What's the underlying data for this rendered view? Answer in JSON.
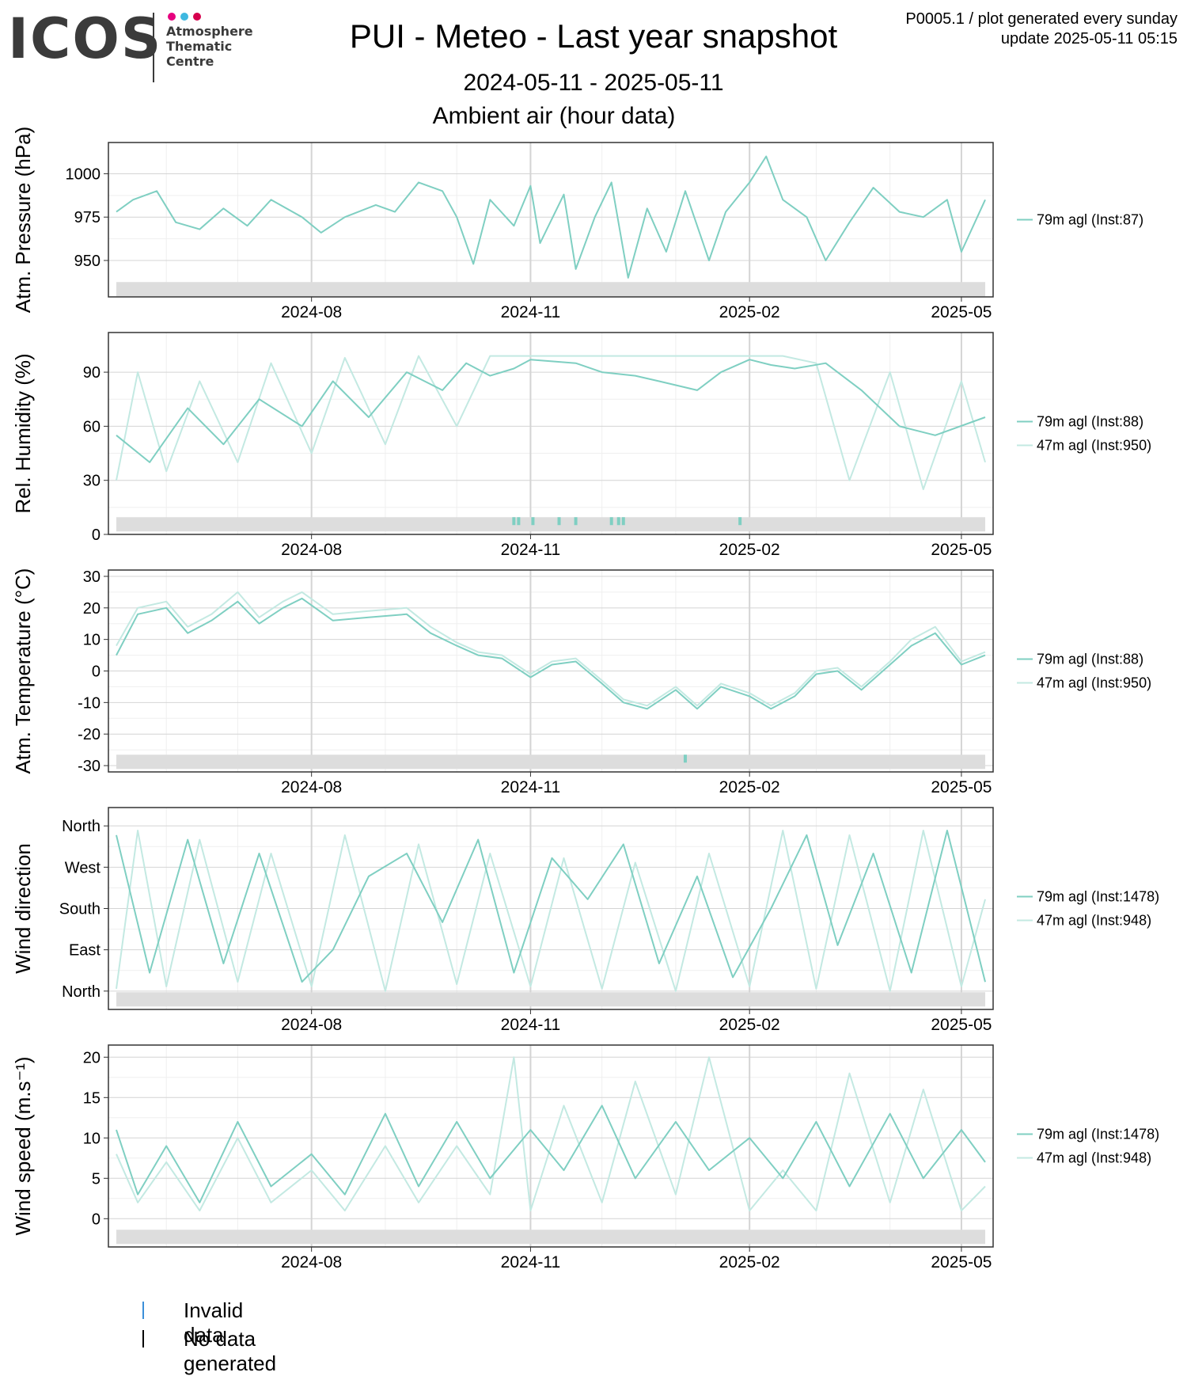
{
  "header": {
    "logo_text": "ICOS",
    "logo_sub": [
      "Atmosphere",
      "Thematic",
      "Centre"
    ],
    "logo_dot_colors": [
      "#e6007e",
      "#3eb8e0",
      "#d6004d"
    ],
    "title": "PUI - Meteo - Last year snapshot",
    "date_range": "2024-05-11 - 2025-05-11",
    "subtitle": "Ambient air (hour data)",
    "plot_id": "P0005.1 / plot generated every sunday",
    "update": "update  2025-05-11 05:15"
  },
  "colors": {
    "series_79m": "#7fcfc2",
    "series_47m": "#c3e9e2",
    "series_single": "#7fcfc2",
    "invalid": "#3b8fd9",
    "no_data": "#000000",
    "flag_bar": "#dddddd",
    "flag_mark": "#7fcfc2",
    "grid_major": "#d4d4d4",
    "grid_minor": "#efefef",
    "frame": "#333333"
  },
  "footer_legend": [
    {
      "label": "Invalid data",
      "color": "#3b8fd9"
    },
    {
      "label": "No data generated",
      "color": "#000000"
    }
  ],
  "chart_data": [
    {
      "type": "line",
      "ylabel": "Atm. Pressure (hPa)",
      "x_range": [
        "2024-05-11",
        "2025-05-11"
      ],
      "x_ticks": [
        "2024-08",
        "2024-11",
        "2025-02",
        "2025-05"
      ],
      "ylim": [
        929,
        1018
      ],
      "y_ticks": [
        950,
        975,
        1000
      ],
      "grid": true,
      "legend_position": "right",
      "series": [
        {
          "name": "79m agl (Inst:87)",
          "color_key": "series_single",
          "x": [
            "2024-05-11",
            "2024-05-18",
            "2024-05-28",
            "2024-06-05",
            "2024-06-15",
            "2024-06-25",
            "2024-07-05",
            "2024-07-15",
            "2024-07-28",
            "2024-08-05",
            "2024-08-15",
            "2024-08-28",
            "2024-09-05",
            "2024-09-15",
            "2024-09-25",
            "2024-10-01",
            "2024-10-08",
            "2024-10-15",
            "2024-10-25",
            "2024-11-01",
            "2024-11-05",
            "2024-11-15",
            "2024-11-20",
            "2024-11-28",
            "2024-12-05",
            "2024-12-12",
            "2024-12-20",
            "2024-12-28",
            "2025-01-05",
            "2025-01-15",
            "2025-01-22",
            "2025-02-01",
            "2025-02-08",
            "2025-02-15",
            "2025-02-25",
            "2025-03-05",
            "2025-03-15",
            "2025-03-25",
            "2025-04-05",
            "2025-04-15",
            "2025-04-25",
            "2025-05-01",
            "2025-05-11"
          ],
          "y": [
            978,
            985,
            990,
            972,
            968,
            980,
            970,
            985,
            975,
            966,
            975,
            982,
            978,
            995,
            990,
            975,
            948,
            985,
            970,
            993,
            960,
            988,
            945,
            975,
            995,
            940,
            980,
            955,
            990,
            950,
            978,
            995,
            1010,
            985,
            975,
            950,
            972,
            992,
            978,
            975,
            985,
            955,
            985
          ]
        }
      ],
      "flags": []
    },
    {
      "type": "line",
      "ylabel": "Rel. Humidity (%)",
      "x_range": [
        "2024-05-11",
        "2025-05-11"
      ],
      "x_ticks": [
        "2024-08",
        "2024-11",
        "2025-02",
        "2025-05"
      ],
      "ylim": [
        0,
        112
      ],
      "y_ticks": [
        0,
        30,
        60,
        90
      ],
      "grid": true,
      "legend_position": "right",
      "series": [
        {
          "name": "79m agl (Inst:88)",
          "color_key": "series_79m",
          "x": [
            "2024-05-11",
            "2024-05-25",
            "2024-06-10",
            "2024-06-25",
            "2024-07-10",
            "2024-07-28",
            "2024-08-10",
            "2024-08-25",
            "2024-09-10",
            "2024-09-25",
            "2024-10-05",
            "2024-10-15",
            "2024-10-25",
            "2024-11-01",
            "2024-11-10",
            "2024-11-20",
            "2024-12-01",
            "2024-12-15",
            "2024-12-25",
            "2025-01-10",
            "2025-01-20",
            "2025-02-01",
            "2025-02-10",
            "2025-02-20",
            "2025-03-05",
            "2025-03-20",
            "2025-04-05",
            "2025-04-20",
            "2025-05-11"
          ],
          "y": [
            55,
            40,
            70,
            50,
            75,
            60,
            85,
            65,
            90,
            80,
            95,
            88,
            92,
            97,
            96,
            95,
            90,
            88,
            85,
            80,
            90,
            97,
            94,
            92,
            95,
            80,
            60,
            55,
            65
          ]
        },
        {
          "name": "47m agl (Inst:950)",
          "color_key": "series_47m",
          "x": [
            "2024-05-11",
            "2024-05-20",
            "2024-06-01",
            "2024-06-15",
            "2024-07-01",
            "2024-07-15",
            "2024-08-01",
            "2024-08-15",
            "2024-09-01",
            "2024-09-15",
            "2024-10-01",
            "2024-10-15",
            "2024-11-01",
            "2024-11-15",
            "2024-12-01",
            "2024-12-15",
            "2025-01-01",
            "2025-01-15",
            "2025-02-01",
            "2025-02-15",
            "2025-03-01",
            "2025-03-15",
            "2025-04-01",
            "2025-04-15",
            "2025-05-01",
            "2025-05-11"
          ],
          "y": [
            30,
            90,
            35,
            85,
            40,
            95,
            45,
            98,
            50,
            99,
            60,
            99,
            99,
            99,
            99,
            99,
            99,
            99,
            99,
            99,
            95,
            30,
            90,
            25,
            85,
            40
          ]
        }
      ],
      "flags": [
        {
          "x": "2024-10-25",
          "kind": "invalid"
        },
        {
          "x": "2024-10-27",
          "kind": "invalid"
        },
        {
          "x": "2024-11-02",
          "kind": "invalid"
        },
        {
          "x": "2024-11-13",
          "kind": "invalid"
        },
        {
          "x": "2024-11-20",
          "kind": "invalid"
        },
        {
          "x": "2024-12-05",
          "kind": "invalid"
        },
        {
          "x": "2024-12-08",
          "kind": "invalid"
        },
        {
          "x": "2024-12-10",
          "kind": "invalid"
        },
        {
          "x": "2025-01-28",
          "kind": "invalid"
        }
      ]
    },
    {
      "type": "line",
      "ylabel": "Atm. Temperature (°C)",
      "x_range": [
        "2024-05-11",
        "2025-05-11"
      ],
      "x_ticks": [
        "2024-08",
        "2024-11",
        "2025-02",
        "2025-05"
      ],
      "ylim": [
        -32,
        32
      ],
      "y_ticks": [
        -30,
        -20,
        -10,
        0,
        10,
        20,
        30
      ],
      "grid": true,
      "legend_position": "right",
      "series": [
        {
          "name": "79m agl (Inst:88)",
          "color_key": "series_79m",
          "x": [
            "2024-05-11",
            "2024-05-20",
            "2024-06-01",
            "2024-06-10",
            "2024-06-20",
            "2024-07-01",
            "2024-07-10",
            "2024-07-20",
            "2024-07-28",
            "2024-08-10",
            "2024-08-25",
            "2024-09-10",
            "2024-09-20",
            "2024-10-01",
            "2024-10-10",
            "2024-10-20",
            "2024-11-01",
            "2024-11-10",
            "2024-11-20",
            "2024-12-01",
            "2024-12-10",
            "2024-12-20",
            "2025-01-01",
            "2025-01-10",
            "2025-01-20",
            "2025-02-01",
            "2025-02-10",
            "2025-02-20",
            "2025-03-01",
            "2025-03-10",
            "2025-03-20",
            "2025-04-01",
            "2025-04-10",
            "2025-04-20",
            "2025-05-01",
            "2025-05-11"
          ],
          "y": [
            5,
            18,
            20,
            12,
            16,
            22,
            15,
            20,
            23,
            16,
            17,
            18,
            12,
            8,
            5,
            4,
            -2,
            2,
            3,
            -4,
            -10,
            -12,
            -6,
            -12,
            -5,
            -8,
            -12,
            -8,
            -1,
            0,
            -6,
            2,
            8,
            12,
            2,
            5
          ]
        },
        {
          "name": "47m agl (Inst:950)",
          "color_key": "series_47m",
          "x": [
            "2024-05-11",
            "2024-05-20",
            "2024-06-01",
            "2024-06-10",
            "2024-06-20",
            "2024-07-01",
            "2024-07-10",
            "2024-07-20",
            "2024-07-28",
            "2024-08-10",
            "2024-08-25",
            "2024-09-10",
            "2024-09-20",
            "2024-10-01",
            "2024-10-10",
            "2024-10-20",
            "2024-11-01",
            "2024-11-10",
            "2024-11-20",
            "2024-12-01",
            "2024-12-10",
            "2024-12-20",
            "2025-01-01",
            "2025-01-10",
            "2025-01-20",
            "2025-02-01",
            "2025-02-10",
            "2025-02-20",
            "2025-03-01",
            "2025-03-10",
            "2025-03-20",
            "2025-04-01",
            "2025-04-10",
            "2025-04-20",
            "2025-05-01",
            "2025-05-11"
          ],
          "y": [
            8,
            20,
            22,
            14,
            18,
            25,
            17,
            22,
            25,
            18,
            19,
            20,
            14,
            9,
            6,
            5,
            -1,
            3,
            4,
            -3,
            -9,
            -11,
            -5,
            -11,
            -4,
            -7,
            -11,
            -7,
            0,
            1,
            -5,
            3,
            10,
            14,
            3,
            6
          ]
        }
      ],
      "flags": [
        {
          "x": "2025-01-05",
          "kind": "invalid"
        }
      ]
    },
    {
      "type": "line",
      "ylabel": "Wind direction",
      "x_range": [
        "2024-05-11",
        "2025-05-11"
      ],
      "x_ticks": [
        "2024-08",
        "2024-11",
        "2025-02",
        "2025-05"
      ],
      "ylim": [
        -40,
        400
      ],
      "y_ticks": [
        0,
        90,
        180,
        270,
        360
      ],
      "y_tick_labels": [
        "North",
        "East",
        "South",
        "West",
        "North"
      ],
      "grid": true,
      "legend_position": "right",
      "series": [
        {
          "name": "79m agl (Inst:1478)",
          "color_key": "series_79m",
          "x": [
            "2024-05-11",
            "2024-05-25",
            "2024-06-10",
            "2024-06-25",
            "2024-07-10",
            "2024-07-28",
            "2024-08-10",
            "2024-08-25",
            "2024-09-10",
            "2024-09-25",
            "2024-10-10",
            "2024-10-25",
            "2024-11-10",
            "2024-11-25",
            "2024-12-10",
            "2024-12-25",
            "2025-01-10",
            "2025-01-25",
            "2025-02-10",
            "2025-02-25",
            "2025-03-10",
            "2025-03-25",
            "2025-04-10",
            "2025-04-25",
            "2025-05-11"
          ],
          "y": [
            340,
            40,
            330,
            60,
            300,
            20,
            90,
            250,
            300,
            150,
            330,
            40,
            290,
            200,
            320,
            60,
            250,
            30,
            180,
            340,
            100,
            300,
            40,
            350,
            20
          ]
        },
        {
          "name": "47m agl (Inst:948)",
          "color_key": "series_47m",
          "x": [
            "2024-05-11",
            "2024-05-20",
            "2024-06-01",
            "2024-06-15",
            "2024-07-01",
            "2024-07-15",
            "2024-08-01",
            "2024-08-15",
            "2024-09-01",
            "2024-09-15",
            "2024-10-01",
            "2024-10-15",
            "2024-11-01",
            "2024-11-15",
            "2024-12-01",
            "2024-12-15",
            "2025-01-01",
            "2025-01-15",
            "2025-02-01",
            "2025-02-15",
            "2025-03-01",
            "2025-03-15",
            "2025-04-01",
            "2025-04-15",
            "2025-05-01",
            "2025-05-11"
          ],
          "y": [
            5,
            350,
            10,
            330,
            20,
            300,
            10,
            340,
            0,
            320,
            15,
            300,
            10,
            290,
            5,
            280,
            0,
            300,
            10,
            350,
            5,
            340,
            0,
            350,
            10,
            200
          ]
        }
      ],
      "flags": []
    },
    {
      "type": "line",
      "ylabel": "Wind speed (m.s⁻¹)",
      "x_range": [
        "2024-05-11",
        "2025-05-11"
      ],
      "x_ticks": [
        "2024-08",
        "2024-11",
        "2025-02",
        "2025-05"
      ],
      "ylim": [
        -3.5,
        21.5
      ],
      "y_ticks": [
        0,
        5,
        10,
        15,
        20
      ],
      "grid": true,
      "legend_position": "right",
      "series": [
        {
          "name": "79m agl (Inst:1478)",
          "color_key": "series_79m",
          "x": [
            "2024-05-11",
            "2024-05-20",
            "2024-06-01",
            "2024-06-15",
            "2024-07-01",
            "2024-07-15",
            "2024-08-01",
            "2024-08-15",
            "2024-09-01",
            "2024-09-15",
            "2024-10-01",
            "2024-10-15",
            "2024-11-01",
            "2024-11-15",
            "2024-12-01",
            "2024-12-15",
            "2025-01-01",
            "2025-01-15",
            "2025-02-01",
            "2025-02-15",
            "2025-03-01",
            "2025-03-15",
            "2025-04-01",
            "2025-04-15",
            "2025-05-01",
            "2025-05-11"
          ],
          "y": [
            11,
            3,
            9,
            2,
            12,
            4,
            8,
            3,
            13,
            4,
            12,
            5,
            11,
            6,
            14,
            5,
            12,
            6,
            10,
            5,
            12,
            4,
            13,
            5,
            11,
            7
          ]
        },
        {
          "name": "47m agl (Inst:948)",
          "color_key": "series_47m",
          "x": [
            "2024-05-11",
            "2024-05-20",
            "2024-06-01",
            "2024-06-15",
            "2024-07-01",
            "2024-07-15",
            "2024-08-01",
            "2024-08-15",
            "2024-09-01",
            "2024-09-15",
            "2024-10-01",
            "2024-10-15",
            "2024-10-25",
            "2024-11-01",
            "2024-11-15",
            "2024-12-01",
            "2024-12-15",
            "2025-01-01",
            "2025-01-15",
            "2025-02-01",
            "2025-02-15",
            "2025-03-01",
            "2025-03-15",
            "2025-04-01",
            "2025-04-15",
            "2025-05-01",
            "2025-05-11"
          ],
          "y": [
            8,
            2,
            7,
            1,
            10,
            2,
            6,
            1,
            9,
            2,
            9,
            3,
            20,
            1,
            14,
            2,
            17,
            3,
            20,
            1,
            6,
            1,
            18,
            2,
            16,
            1,
            4
          ]
        }
      ],
      "flags": []
    }
  ]
}
